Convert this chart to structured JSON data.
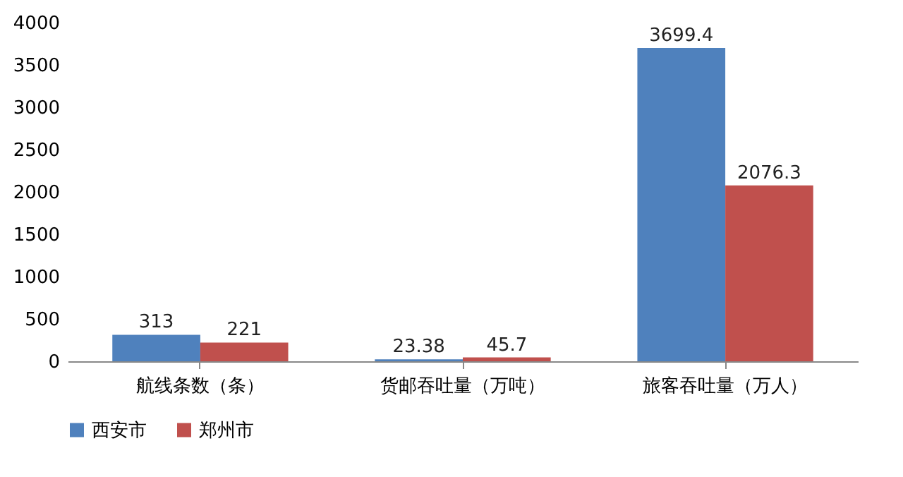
{
  "chart_data": {
    "type": "bar",
    "categories": [
      "航线条数（条）",
      "货邮吞吐量（万吨）",
      "旅客吞吐量（万人）"
    ],
    "series": [
      {
        "name": "西安市",
        "color": "#4f81bd",
        "values": [
          313,
          23.38,
          3699.4
        ]
      },
      {
        "name": "郑州市",
        "color": "#c0504d",
        "values": [
          221,
          45.7,
          2076.3
        ]
      }
    ],
    "ylim": [
      0,
      4000
    ],
    "yticks": [
      0,
      500,
      1000,
      1500,
      2000,
      2500,
      3000,
      3500,
      4000
    ],
    "data_labels": true,
    "legend": "bottom",
    "grid": false
  }
}
